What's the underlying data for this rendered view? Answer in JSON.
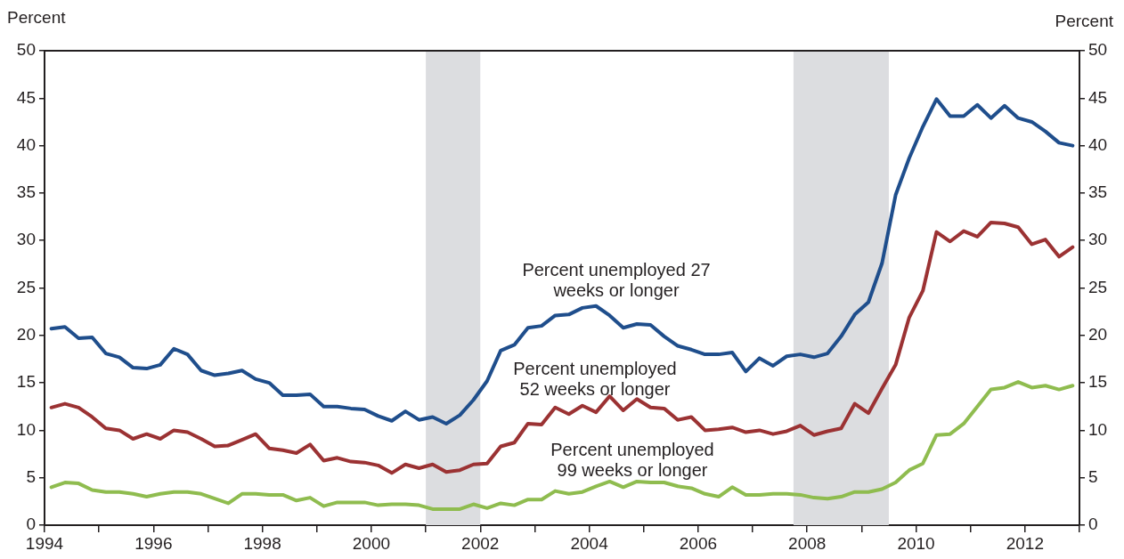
{
  "chart_data": {
    "type": "line",
    "ylabel": "Percent",
    "y2label": "Percent",
    "x": [
      1994.125,
      1994.375,
      1994.625,
      1994.875,
      1995.125,
      1995.375,
      1995.625,
      1995.875,
      1996.125,
      1996.375,
      1996.625,
      1996.875,
      1997.125,
      1997.375,
      1997.625,
      1997.875,
      1998.125,
      1998.375,
      1998.625,
      1998.875,
      1999.125,
      1999.375,
      1999.625,
      1999.875,
      2000.125,
      2000.375,
      2000.625,
      2000.875,
      2001.125,
      2001.375,
      2001.625,
      2001.875,
      2002.125,
      2002.375,
      2002.625,
      2002.875,
      2003.125,
      2003.375,
      2003.625,
      2003.875,
      2004.125,
      2004.375,
      2004.625,
      2004.875,
      2005.125,
      2005.375,
      2005.625,
      2005.875,
      2006.125,
      2006.375,
      2006.625,
      2006.875,
      2007.125,
      2007.375,
      2007.625,
      2007.875,
      2008.125,
      2008.375,
      2008.625,
      2008.875,
      2009.125,
      2009.375,
      2009.625,
      2009.875,
      2010.125,
      2010.375,
      2010.625,
      2010.875,
      2011.125,
      2011.375,
      2011.625,
      2011.875,
      2012.125,
      2012.375,
      2012.625,
      2012.875
    ],
    "series": [
      {
        "name": "Percent unemployed 27 weeks or longer",
        "color": "#1f4e8c",
        "values": [
          20.7,
          20.9,
          19.7,
          19.8,
          18.1,
          17.7,
          16.6,
          16.5,
          16.9,
          18.6,
          18.0,
          16.3,
          15.8,
          16.0,
          16.3,
          15.4,
          15.0,
          13.7,
          13.7,
          13.8,
          12.5,
          12.5,
          12.3,
          12.2,
          11.5,
          11.0,
          12.0,
          11.1,
          11.4,
          10.7,
          11.6,
          13.2,
          15.2,
          18.4,
          19.0,
          20.8,
          21.0,
          22.1,
          22.2,
          22.9,
          23.1,
          22.1,
          20.8,
          21.2,
          21.1,
          19.9,
          18.9,
          18.5,
          18.0,
          18.0,
          18.2,
          16.2,
          17.6,
          16.8,
          17.8,
          18.0,
          17.7,
          18.1,
          19.9,
          22.2,
          23.5,
          27.6,
          34.8,
          38.7,
          42.0,
          44.9,
          43.1,
          43.1,
          44.3,
          42.9,
          44.2,
          42.9,
          42.5,
          41.5,
          40.3,
          40.0
        ]
      },
      {
        "name": "Percent unemployed 52 weeks or longer",
        "color": "#9b3233",
        "values": [
          12.4,
          12.8,
          12.4,
          11.4,
          10.2,
          10.0,
          9.1,
          9.6,
          9.1,
          10.0,
          9.8,
          9.1,
          8.3,
          8.4,
          9.0,
          9.6,
          8.1,
          7.9,
          7.6,
          8.5,
          6.8,
          7.1,
          6.7,
          6.6,
          6.3,
          5.5,
          6.4,
          6.0,
          6.4,
          5.6,
          5.8,
          6.4,
          6.5,
          8.3,
          8.7,
          10.7,
          10.6,
          12.4,
          11.7,
          12.6,
          11.9,
          13.6,
          12.1,
          13.3,
          12.4,
          12.3,
          11.1,
          11.4,
          10.0,
          10.1,
          10.3,
          9.8,
          10.0,
          9.6,
          9.9,
          10.5,
          9.5,
          9.9,
          10.2,
          12.8,
          11.8,
          14.4,
          16.9,
          21.9,
          24.7,
          30.9,
          29.9,
          31.0,
          30.4,
          31.9,
          31.8,
          31.4,
          29.6,
          30.1,
          28.3,
          29.3
        ]
      },
      {
        "name": "Percent unemployed 99 weeks or longer",
        "color": "#8fbc4f",
        "values": [
          4.0,
          4.5,
          4.4,
          3.7,
          3.5,
          3.5,
          3.3,
          3.0,
          3.3,
          3.5,
          3.5,
          3.3,
          2.8,
          2.3,
          3.3,
          3.3,
          3.2,
          3.2,
          2.6,
          2.9,
          2.0,
          2.4,
          2.4,
          2.4,
          2.1,
          2.2,
          2.2,
          2.1,
          1.7,
          1.7,
          1.7,
          2.2,
          1.8,
          2.3,
          2.1,
          2.7,
          2.7,
          3.6,
          3.3,
          3.5,
          4.1,
          4.6,
          4.0,
          4.6,
          4.5,
          4.5,
          4.1,
          3.9,
          3.3,
          3.0,
          4.0,
          3.2,
          3.2,
          3.3,
          3.3,
          3.2,
          2.9,
          2.8,
          3.0,
          3.5,
          3.5,
          3.8,
          4.5,
          5.8,
          6.5,
          9.5,
          9.6,
          10.7,
          12.5,
          14.3,
          14.5,
          15.1,
          14.5,
          14.7,
          14.3,
          14.7
        ]
      }
    ],
    "xlim": [
      1994,
      2013
    ],
    "xticks": [
      1994,
      {
        "value": 1995,
        "label": null
      },
      1996,
      {
        "value": 1997,
        "label": null
      },
      1998,
      {
        "value": 1999,
        "label": null
      },
      2000,
      {
        "value": 2001,
        "label": null
      },
      2002,
      {
        "value": 2003,
        "label": null
      },
      2004,
      {
        "value": 2005,
        "label": null
      },
      2006,
      {
        "value": 2007,
        "label": null
      },
      2008,
      {
        "value": 2009,
        "label": null
      },
      2010,
      {
        "value": 2011,
        "label": null
      },
      2012,
      {
        "value": 2013,
        "label": null
      }
    ],
    "ylim": [
      0,
      50
    ],
    "yticks": [
      0,
      5,
      10,
      15,
      20,
      25,
      30,
      35,
      40,
      45,
      50
    ],
    "y2lim": [
      0,
      50
    ],
    "y2ticks": [
      0,
      5,
      10,
      15,
      20,
      25,
      30,
      35,
      40,
      45,
      50
    ],
    "bands": [
      {
        "axis": "x",
        "from": 2001.0,
        "to": 2002.0,
        "color": "#dcdde0"
      },
      {
        "axis": "x",
        "from": 2007.75,
        "to": 2009.5,
        "color": "#dcdde0"
      }
    ]
  }
}
